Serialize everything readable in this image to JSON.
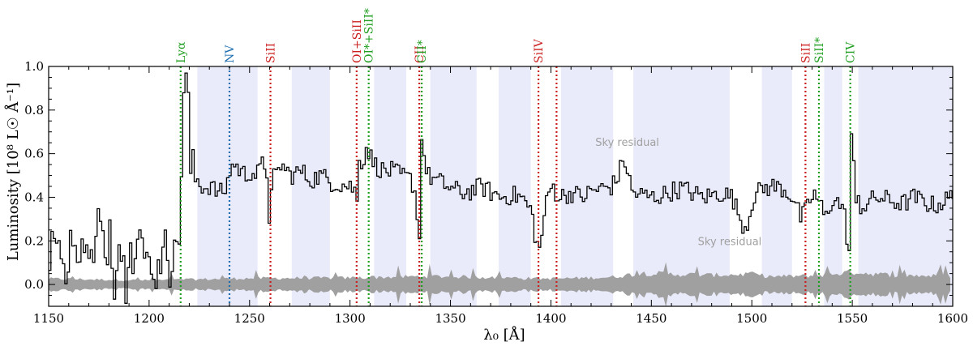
{
  "chart_data": {
    "type": "line",
    "xlabel": "λ₀ [Å]",
    "ylabel": "Luminosity [10⁸ L☉ Å⁻¹]",
    "xlim": [
      1150,
      1600
    ],
    "ylim": [
      -0.1,
      1.0
    ],
    "xticks": [
      1150,
      1200,
      1250,
      1300,
      1350,
      1400,
      1450,
      1500,
      1550,
      1600
    ],
    "yticks": [
      0.0,
      0.2,
      0.4,
      0.6,
      0.8,
      1.0
    ],
    "xtick_labels": [
      "1150",
      "1200",
      "1250",
      "1300",
      "1350",
      "1400",
      "1450",
      "1500",
      "1550",
      "1600"
    ],
    "ytick_labels": [
      "0.0",
      "0.2",
      "0.4",
      "0.6",
      "0.8",
      "1.0"
    ],
    "colors": {
      "flux": "#000000",
      "error": "#a0a0a0",
      "band": "#e9ebfa",
      "red": "#cc1f1f",
      "green": "#1f9e1f",
      "blue": "#1f6fb0"
    },
    "shaded_regions": [
      [
        1224,
        1254
      ],
      [
        1271,
        1290
      ],
      [
        1312,
        1328
      ],
      [
        1340,
        1363
      ],
      [
        1374,
        1390
      ],
      [
        1405,
        1431
      ],
      [
        1441,
        1489
      ],
      [
        1505,
        1520
      ],
      [
        1536,
        1545
      ],
      [
        1553,
        1600
      ]
    ],
    "lines": [
      {
        "label": "Lyα",
        "x": 1215.7,
        "color": "green"
      },
      {
        "label": "NV",
        "x": 1240.0,
        "color": "blue"
      },
      {
        "label": "SiII",
        "x": 1260.4,
        "color": "red"
      },
      {
        "label": "OI+SiII",
        "x": 1303.3,
        "color": "red"
      },
      {
        "label": "OI*+SiII*",
        "x": 1309.3,
        "color": "green"
      },
      {
        "label": "CII",
        "x": 1334.5,
        "color": "red"
      },
      {
        "label": "CII*",
        "x": 1335.7,
        "color": "green"
      },
      {
        "label": "SiIV",
        "x": 1393.8,
        "color": "red"
      },
      {
        "label": "",
        "x": 1402.8,
        "color": "red"
      },
      {
        "label": "SiII",
        "x": 1526.7,
        "color": "red"
      },
      {
        "label": "SiII*",
        "x": 1533.4,
        "color": "green"
      },
      {
        "label": "CIV",
        "x": 1549.0,
        "color": "green"
      }
    ],
    "annotations": [
      {
        "text": "Sky residual",
        "x": 1438,
        "y": 0.635
      },
      {
        "text": "Sky residual",
        "x": 1489,
        "y": 0.18
      }
    ],
    "flux_anchors": {
      "x": [
        1150,
        1152,
        1154,
        1156,
        1158,
        1160,
        1162,
        1164,
        1166,
        1168,
        1170,
        1172,
        1174,
        1176,
        1178,
        1180,
        1182,
        1184,
        1186,
        1188,
        1190,
        1192,
        1194,
        1196,
        1198,
        1200,
        1202,
        1204,
        1206,
        1208,
        1210,
        1212,
        1214,
        1215,
        1216,
        1217,
        1218,
        1219,
        1220,
        1221,
        1222,
        1224,
        1226,
        1228,
        1230,
        1232,
        1235,
        1238,
        1240,
        1242,
        1245,
        1248,
        1250,
        1253,
        1256,
        1258,
        1259,
        1260,
        1261,
        1262,
        1265,
        1270,
        1275,
        1280,
        1285,
        1290,
        1295,
        1300,
        1302,
        1303,
        1304,
        1306,
        1308,
        1309,
        1310,
        1312,
        1316,
        1320,
        1325,
        1330,
        1332,
        1333,
        1334,
        1335,
        1336,
        1338,
        1342,
        1346,
        1350,
        1355,
        1360,
        1365,
        1370,
        1375,
        1380,
        1385,
        1390,
        1392,
        1394,
        1396,
        1398,
        1400,
        1402,
        1404,
        1406,
        1410,
        1415,
        1420,
        1425,
        1430,
        1433,
        1436,
        1438,
        1440,
        1445,
        1450,
        1455,
        1460,
        1465,
        1470,
        1475,
        1480,
        1485,
        1490,
        1492,
        1494,
        1496,
        1498,
        1500,
        1505,
        1510,
        1515,
        1520,
        1524,
        1527,
        1530,
        1533,
        1536,
        1540,
        1544,
        1546,
        1547,
        1548,
        1549,
        1550,
        1551,
        1552,
        1554,
        1558,
        1562,
        1566,
        1570,
        1575,
        1580,
        1585,
        1590,
        1595,
        1600
      ],
      "y": [
        0.05,
        0.3,
        0.1,
        0.2,
        -0.02,
        0.25,
        0.15,
        0.05,
        0.3,
        0.1,
        0.2,
        0.05,
        0.33,
        0.2,
        0.1,
        0.3,
        0.0,
        0.2,
        0.15,
        0.0,
        0.3,
        0.05,
        0.25,
        0.15,
        0.1,
        0.2,
        -0.05,
        0.15,
        0.1,
        0.2,
        0.05,
        0.25,
        0.05,
        0.4,
        0.62,
        1.0,
        0.95,
        0.85,
        0.5,
        0.62,
        0.48,
        0.48,
        0.45,
        0.44,
        0.46,
        0.43,
        0.42,
        0.44,
        0.54,
        0.55,
        0.52,
        0.5,
        0.52,
        0.5,
        0.55,
        0.54,
        0.3,
        0.35,
        0.5,
        0.48,
        0.55,
        0.5,
        0.52,
        0.48,
        0.5,
        0.47,
        0.46,
        0.45,
        0.43,
        0.37,
        0.6,
        0.55,
        0.65,
        0.6,
        0.58,
        0.55,
        0.52,
        0.52,
        0.5,
        0.48,
        0.42,
        0.3,
        0.2,
        0.72,
        0.6,
        0.5,
        0.48,
        0.46,
        0.44,
        0.42,
        0.43,
        0.45,
        0.42,
        0.4,
        0.41,
        0.4,
        0.33,
        0.2,
        0.15,
        0.32,
        0.4,
        0.46,
        0.42,
        0.4,
        0.41,
        0.42,
        0.4,
        0.43,
        0.44,
        0.45,
        0.5,
        0.58,
        0.5,
        0.42,
        0.41,
        0.4,
        0.41,
        0.43,
        0.44,
        0.42,
        0.4,
        0.41,
        0.42,
        0.4,
        0.34,
        0.3,
        0.26,
        0.3,
        0.4,
        0.44,
        0.45,
        0.44,
        0.4,
        0.3,
        0.35,
        0.42,
        0.38,
        0.3,
        0.4,
        0.36,
        0.3,
        0.2,
        0.14,
        0.7,
        0.6,
        0.3,
        0.42,
        0.35,
        0.38,
        0.4,
        0.39,
        0.38,
        0.37,
        0.4,
        0.38,
        0.36,
        0.38,
        0.41
      ]
    },
    "error_anchors": {
      "x": [
        1150,
        1200,
        1250,
        1300,
        1340,
        1400,
        1430,
        1445,
        1460,
        1480,
        1500,
        1510,
        1530,
        1550,
        1570,
        1600
      ],
      "y": [
        0.028,
        0.02,
        0.03,
        0.032,
        0.04,
        0.028,
        0.035,
        0.055,
        0.05,
        0.045,
        0.05,
        0.038,
        0.042,
        0.06,
        0.045,
        0.04
      ]
    }
  }
}
